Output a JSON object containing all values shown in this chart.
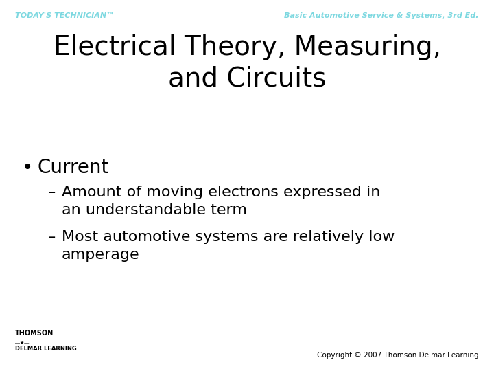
{
  "background_color": "#ffffff",
  "header_left_text": "TODAY'S TECHNICIAN™",
  "header_right_text": "Basic Automotive Service & Systems, 3rd Ed.",
  "header_color": "#7dd8e0",
  "title_line1": "Electrical Theory, Measuring,",
  "title_line2": "and Circuits",
  "title_color": "#000000",
  "title_fontsize": 28,
  "bullet_text": "Current",
  "bullet_color": "#000000",
  "bullet_fontsize": 20,
  "sub_bullets": [
    "Amount of moving electrons expressed in\nan understandable term",
    "Most automotive systems are relatively low\namperage"
  ],
  "sub_bullet_color": "#000000",
  "sub_bullet_fontsize": 16,
  "footer_right_text": "Copyright © 2007 Thomson Delmar Learning",
  "footer_color": "#000000",
  "footer_fontsize": 7.5,
  "header_fontsize": 8
}
